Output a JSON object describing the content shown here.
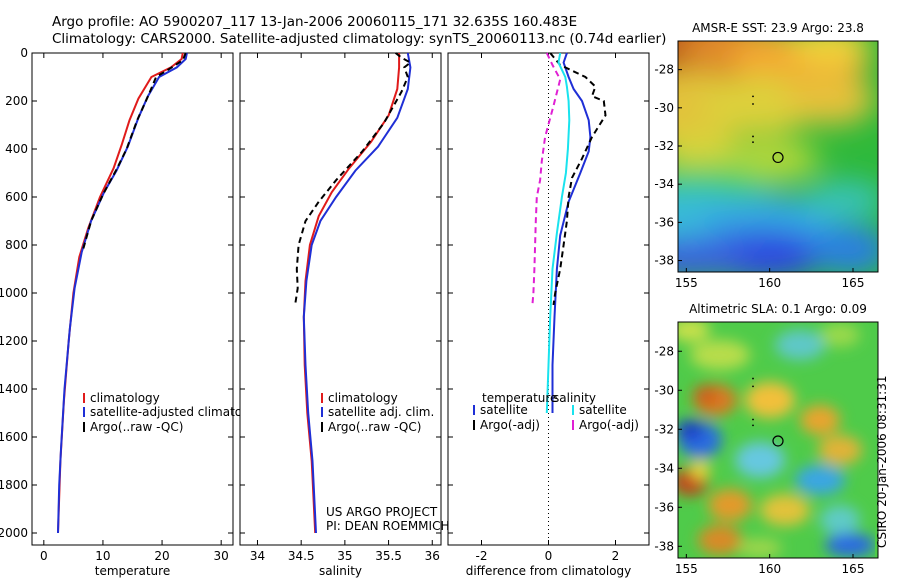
{
  "header": {
    "line1": "Argo profile: AO 5900207_117 13-Jan-2006 20060115_171 32.635S 160.483E",
    "line2": "Climatology: CARS2000. Satellite-adjusted climatology: synTS_20060113.nc (0.74d earlier)"
  },
  "colors": {
    "clim": "#e01b1b",
    "sat": "#1f2fd6",
    "argo": "#000000",
    "sat_sal": "#19e3ee",
    "argo_sal": "#e020d4"
  },
  "chart_data": [
    {
      "type": "line",
      "id": "temperature",
      "xlabel": "temperature",
      "ylabel": "",
      "xlim": [
        -2,
        32
      ],
      "ylim": [
        0,
        2050
      ],
      "y_inverted": true,
      "xticks": [
        0,
        10,
        20,
        30
      ],
      "yticks": [
        0,
        200,
        400,
        600,
        800,
        1000,
        1200,
        1400,
        1600,
        1800,
        2000
      ],
      "series": [
        {
          "name": "climatology",
          "color": "#e01b1b",
          "dash": "",
          "pts": [
            [
              23.5,
              0
            ],
            [
              23.3,
              25
            ],
            [
              21.5,
              60
            ],
            [
              18.2,
              100
            ],
            [
              16.0,
              190
            ],
            [
              14.5,
              280
            ],
            [
              13.2,
              380
            ],
            [
              11.8,
              480
            ],
            [
              9.5,
              600
            ],
            [
              7.5,
              730
            ],
            [
              6.0,
              850
            ],
            [
              5.0,
              1000
            ],
            [
              4.2,
              1200
            ],
            [
              3.4,
              1450
            ],
            [
              2.8,
              1700
            ],
            [
              2.4,
              2000
            ]
          ]
        },
        {
          "name": "satellite-adjusted climatology",
          "color": "#1f2fd6",
          "dash": "",
          "pts": [
            [
              24.2,
              0
            ],
            [
              24.0,
              25
            ],
            [
              22.5,
              60
            ],
            [
              19.5,
              100
            ],
            [
              17.6,
              180
            ],
            [
              16.0,
              270
            ],
            [
              14.2,
              390
            ],
            [
              12.3,
              490
            ],
            [
              10.2,
              580
            ],
            [
              8.0,
              700
            ],
            [
              6.4,
              830
            ],
            [
              5.2,
              980
            ],
            [
              4.4,
              1150
            ],
            [
              3.5,
              1400
            ],
            [
              2.9,
              1650
            ],
            [
              2.6,
              1800
            ],
            [
              2.4,
              2000
            ]
          ]
        },
        {
          "name": "Argo(..raw -QC)",
          "color": "#000000",
          "dash": "6,4",
          "pts": [
            [
              24.0,
              0
            ],
            [
              23.5,
              30
            ],
            [
              21.0,
              70
            ],
            [
              19.0,
              100
            ],
            [
              17.8,
              170
            ],
            [
              15.8,
              280
            ],
            [
              14.0,
              400
            ],
            [
              12.2,
              490
            ],
            [
              10.0,
              590
            ],
            [
              8.0,
              700
            ],
            [
              6.5,
              830
            ]
          ]
        }
      ],
      "legend": [
        "climatology",
        "satellite-adjusted climatology",
        "Argo(..raw -QC)"
      ]
    },
    {
      "type": "line",
      "id": "salinity",
      "xlabel": "salinity",
      "ylabel": "",
      "xlim": [
        33.8,
        36.1
      ],
      "ylim": [
        0,
        2050
      ],
      "y_inverted": true,
      "xticks": [
        34,
        34.5,
        35,
        35.5,
        36
      ],
      "yticks": [
        0,
        200,
        400,
        600,
        800,
        1000,
        1200,
        1400,
        1600,
        1800,
        2000
      ],
      "series": [
        {
          "name": "climatology",
          "color": "#e01b1b",
          "dash": "",
          "pts": [
            [
              35.62,
              0
            ],
            [
              35.62,
              60
            ],
            [
              35.6,
              150
            ],
            [
              35.5,
              260
            ],
            [
              35.3,
              370
            ],
            [
              35.05,
              480
            ],
            [
              34.85,
              580
            ],
            [
              34.7,
              680
            ],
            [
              34.6,
              800
            ],
            [
              34.55,
              950
            ],
            [
              34.53,
              1100
            ],
            [
              34.54,
              1300
            ],
            [
              34.57,
              1500
            ],
            [
              34.62,
              1700
            ],
            [
              34.66,
              2000
            ]
          ]
        },
        {
          "name": "satellite adj. clim.",
          "color": "#1f2fd6",
          "dash": "",
          "pts": [
            [
              35.72,
              0
            ],
            [
              35.75,
              60
            ],
            [
              35.72,
              150
            ],
            [
              35.6,
              270
            ],
            [
              35.38,
              390
            ],
            [
              35.12,
              490
            ],
            [
              34.9,
              600
            ],
            [
              34.72,
              700
            ],
            [
              34.62,
              800
            ],
            [
              34.56,
              950
            ],
            [
              34.53,
              1100
            ],
            [
              34.55,
              1300
            ],
            [
              34.58,
              1500
            ],
            [
              34.63,
              1700
            ],
            [
              34.67,
              2000
            ]
          ]
        },
        {
          "name": "Argo(..raw -QC)",
          "color": "#000000",
          "dash": "6,4",
          "pts": [
            [
              35.58,
              0
            ],
            [
              35.65,
              20
            ],
            [
              35.75,
              40
            ],
            [
              35.68,
              60
            ],
            [
              35.72,
              100
            ],
            [
              35.65,
              160
            ],
            [
              35.45,
              290
            ],
            [
              35.2,
              410
            ],
            [
              34.9,
              530
            ],
            [
              34.7,
              620
            ],
            [
              34.55,
              700
            ],
            [
              34.47,
              800
            ],
            [
              34.45,
              900
            ],
            [
              34.46,
              980
            ],
            [
              34.43,
              1050
            ]
          ]
        }
      ],
      "legend": [
        "climatology",
        "satellite adj. clim.",
        "Argo(..raw -QC)"
      ],
      "annotations": [
        "US ARGO PROJECT",
        "PI: DEAN ROEMMICH"
      ]
    },
    {
      "type": "line",
      "id": "difference",
      "xlabel": "difference from climatology",
      "ylabel": "",
      "xlim": [
        -3,
        3
      ],
      "ylim": [
        0,
        2050
      ],
      "y_inverted": true,
      "xticks": [
        -2,
        0,
        2
      ],
      "yticks": [
        0,
        200,
        400,
        600,
        800,
        1000,
        1200,
        1400,
        1600,
        1800,
        2000
      ],
      "series": [
        {
          "name": "temperature satellite",
          "color": "#1f2fd6",
          "dash": "",
          "pts": [
            [
              0.55,
              0
            ],
            [
              0.45,
              40
            ],
            [
              0.6,
              100
            ],
            [
              0.75,
              150
            ],
            [
              1.0,
              200
            ],
            [
              1.2,
              280
            ],
            [
              1.25,
              350
            ],
            [
              1.2,
              410
            ],
            [
              0.95,
              500
            ],
            [
              0.6,
              620
            ],
            [
              0.35,
              760
            ],
            [
              0.25,
              900
            ],
            [
              0.18,
              1100
            ],
            [
              0.12,
              1300
            ],
            [
              0.12,
              1500
            ]
          ]
        },
        {
          "name": "temperature Argo(-adj)",
          "color": "#000000",
          "dash": "6,4",
          "pts": [
            [
              0.05,
              0
            ],
            [
              0.35,
              50
            ],
            [
              1.1,
              100
            ],
            [
              1.4,
              140
            ],
            [
              1.3,
              180
            ],
            [
              1.65,
              200
            ],
            [
              1.7,
              260
            ],
            [
              1.3,
              350
            ],
            [
              1.0,
              440
            ],
            [
              0.7,
              520
            ],
            [
              0.6,
              600
            ],
            [
              0.55,
              700
            ],
            [
              0.45,
              800
            ],
            [
              0.35,
              900
            ],
            [
              0.2,
              1000
            ],
            [
              0.15,
              1050
            ]
          ]
        },
        {
          "name": "salinity satellite",
          "color": "#19e3ee",
          "dash": "",
          "pts": [
            [
              0.35,
              0
            ],
            [
              0.3,
              40
            ],
            [
              0.5,
              100
            ],
            [
              0.55,
              140
            ],
            [
              0.6,
              200
            ],
            [
              0.62,
              280
            ],
            [
              0.58,
              400
            ],
            [
              0.52,
              500
            ],
            [
              0.4,
              600
            ],
            [
              0.25,
              750
            ],
            [
              0.12,
              900
            ],
            [
              0.05,
              1100
            ],
            [
              0.0,
              1300
            ],
            [
              -0.05,
              1500
            ]
          ]
        },
        {
          "name": "salinity Argo(-adj)",
          "color": "#e020d4",
          "dash": "6,4",
          "pts": [
            [
              -0.05,
              0
            ],
            [
              0.12,
              50
            ],
            [
              0.35,
              110
            ],
            [
              0.15,
              220
            ],
            [
              -0.1,
              350
            ],
            [
              -0.2,
              450
            ],
            [
              -0.25,
              530
            ],
            [
              -0.35,
              600
            ],
            [
              -0.38,
              700
            ],
            [
              -0.4,
              800
            ],
            [
              -0.42,
              900
            ],
            [
              -0.45,
              1000
            ],
            [
              -0.48,
              1050
            ]
          ]
        }
      ],
      "legend_headers": [
        "temperature",
        "salinity"
      ],
      "legend": [
        "satellite",
        "Argo(-adj)",
        "satellite",
        "Argo(-adj)"
      ]
    },
    {
      "type": "heatmap",
      "id": "sst",
      "title": "AMSR-E SST: 23.9 Argo: 23.8",
      "xlim": [
        154.5,
        166.5
      ],
      "ylim": [
        -38.6,
        -26.5
      ],
      "xticks": [
        155,
        160,
        165
      ],
      "yticks": [
        -28,
        -30,
        -32,
        -34,
        -36,
        -38
      ],
      "marker": [
        160.5,
        -32.6
      ]
    },
    {
      "type": "heatmap",
      "id": "sla",
      "title": "Altimetric SLA: 0.1 Argo: 0.09",
      "xlim": [
        154.5,
        166.5
      ],
      "ylim": [
        -38.6,
        -26.5
      ],
      "xticks": [
        155,
        160,
        165
      ],
      "yticks": [
        -28,
        -30,
        -32,
        -34,
        -36,
        -38
      ],
      "marker": [
        160.5,
        -32.6
      ]
    }
  ],
  "footer": {
    "stamp": "CSIRO 20-Jan-2006 08:31:31"
  }
}
